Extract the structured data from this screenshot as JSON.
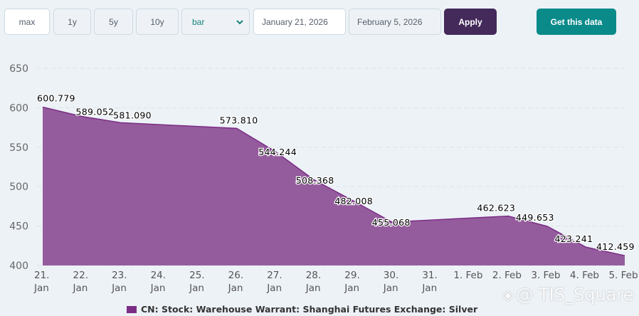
{
  "toolbar": {
    "range_buttons": [
      "max",
      "1y",
      "5y",
      "10y"
    ],
    "chart_type_selected": "bar",
    "start_date": "January 21, 2026",
    "end_date": "February 5, 2026",
    "apply_label": "Apply",
    "get_data_label": "Get this data"
  },
  "watermark": {
    "text": "@ TIS_Square",
    "icon": "binance-logo-icon"
  },
  "colors": {
    "series": "#7b2d85",
    "area_fill": "#955c9d",
    "apply": "#432a5a",
    "get_data": "#0b8a8a"
  },
  "chart_data": {
    "type": "area",
    "title": "",
    "xlabel": "",
    "ylabel": "",
    "ylim": [
      400,
      650
    ],
    "yticks": [
      "400",
      "450",
      "500",
      "550",
      "600",
      "650"
    ],
    "grid": true,
    "x_ticks": [
      [
        "21.",
        "Jan"
      ],
      [
        "22.",
        "Jan"
      ],
      [
        "23.",
        "Jan"
      ],
      [
        "24.",
        "Jan"
      ],
      [
        "25.",
        "Jan"
      ],
      [
        "26.",
        "Jan"
      ],
      [
        "27.",
        "Jan"
      ],
      [
        "28.",
        "Jan"
      ],
      [
        "29.",
        "Jan"
      ],
      [
        "30.",
        "Jan"
      ],
      [
        "31.",
        "Jan"
      ],
      [
        "1. Feb",
        ""
      ],
      [
        "2. Feb",
        ""
      ],
      [
        "3. Feb",
        ""
      ],
      [
        "4. Feb",
        ""
      ],
      [
        "5. Feb",
        ""
      ]
    ],
    "legend": {
      "position": "bottom",
      "entries": [
        "CN: Stock: Warehouse Warrant: Shanghai Futures Exchange: Silver"
      ]
    },
    "series": [
      {
        "name": "CN: Stock: Warehouse Warrant: Shanghai Futures Exchange: Silver",
        "points": [
          {
            "day": 0,
            "date": "21 Jan",
            "value": 600.779,
            "label": "600.779"
          },
          {
            "day": 1,
            "date": "22 Jan",
            "value": 589.052,
            "label": "589.052"
          },
          {
            "day": 2,
            "date": "23 Jan",
            "value": 581.09,
            "label": "581.090"
          },
          {
            "day": 5,
            "date": "26 Jan",
            "value": 573.81,
            "label": "573.810"
          },
          {
            "day": 6,
            "date": "27 Jan",
            "value": 544.244,
            "label": "544.244"
          },
          {
            "day": 7,
            "date": "28 Jan",
            "value": 508.368,
            "label": "508.368"
          },
          {
            "day": 8,
            "date": "29 Jan",
            "value": 482.008,
            "label": "482.008"
          },
          {
            "day": 9,
            "date": "30 Jan",
            "value": 455.068,
            "label": "455.068"
          },
          {
            "day": 12,
            "date": "2 Feb",
            "value": 462.623,
            "label": "462.623"
          },
          {
            "day": 13,
            "date": "3 Feb",
            "value": 449.653,
            "label": "449.653"
          },
          {
            "day": 14,
            "date": "4 Feb",
            "value": 423.241,
            "label": "423.241"
          },
          {
            "day": 15,
            "date": "5 Feb",
            "value": 412.459,
            "label": "412.459"
          }
        ]
      }
    ]
  }
}
